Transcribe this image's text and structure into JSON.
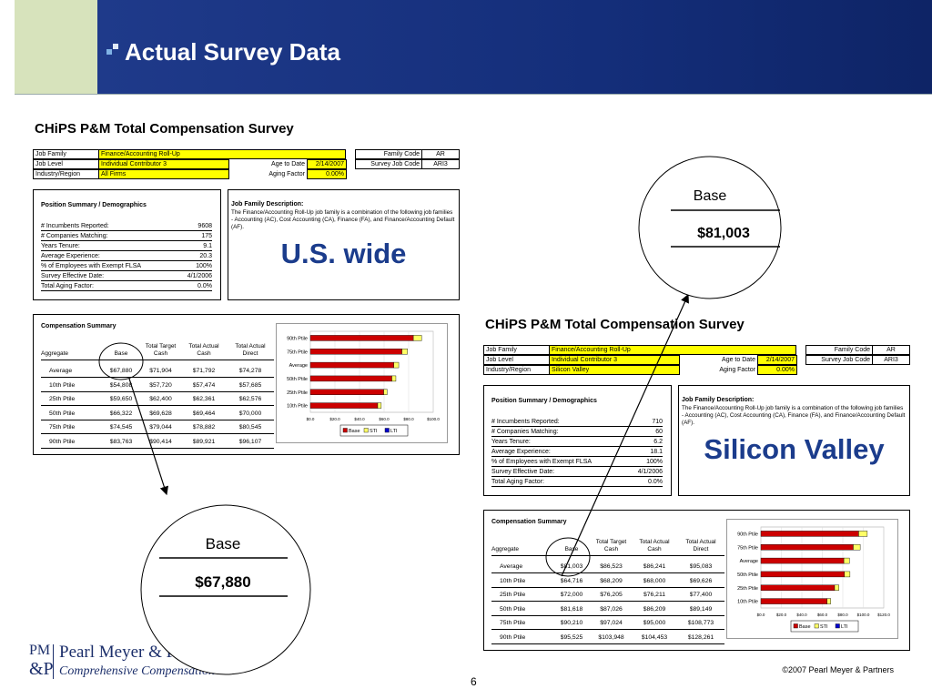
{
  "header": {
    "title": "Actual Survey Data"
  },
  "surveys": [
    {
      "title": "CHiPS P&M Total Compensation Survey",
      "fields": [
        {
          "label": "Job Family",
          "value": "Finance/Accounting Roll-Up"
        },
        {
          "label": "Job Level",
          "value": "Individual Contributor 3"
        },
        {
          "label": "Industry/Region",
          "value": "All Firms"
        }
      ],
      "dates": [
        {
          "label": "Age to Date",
          "value": "2/14/2007"
        },
        {
          "label": "Aging Factor",
          "value": "0.00%"
        }
      ],
      "codes": [
        {
          "label": "Family Code",
          "value": "AR"
        },
        {
          "label": "Survey Job Code",
          "value": "ARI3"
        }
      ],
      "position_summary": {
        "title": "Position Summary / Demographics",
        "rows": [
          [
            "# Incumbents Reported:",
            "9608"
          ],
          [
            "# Companies Matching:",
            "175"
          ],
          [
            "Years Tenure:",
            "9.1"
          ],
          [
            "Average Experience:",
            "20.3"
          ],
          [
            "% of Employees with Exempt FLSA",
            "100%"
          ],
          [
            "Survey Effective Date:",
            "4/1/2006"
          ],
          [
            "Total Aging Factor:",
            "0.0%"
          ]
        ]
      },
      "description": {
        "title": "Job Family Description:",
        "text": "The Finance/Accounting Roll-Up job family is a combination of the following job families - Accounting (AC), Cost Accounting (CA), Finance (FA), and Finance/Accounting Default (AF).",
        "label": "U.S. wide"
      },
      "comp_summary": {
        "title": "Compensation Summary",
        "columns": [
          "Aggregate",
          "Base",
          "Total Target Cash",
          "Total Actual Cash",
          "Total Actual Direct"
        ],
        "rows": [
          [
            "Average",
            "$67,880",
            "$71,904",
            "$71,792",
            "$74,278"
          ],
          [
            "10th Ptile",
            "$54,808",
            "$57,720",
            "$57,474",
            "$57,685"
          ],
          [
            "25th Ptile",
            "$59,650",
            "$62,400",
            "$62,361",
            "$62,576"
          ],
          [
            "50th Ptile",
            "$66,322",
            "$69,628",
            "$69,464",
            "$70,000"
          ],
          [
            "75th Ptile",
            "$74,545",
            "$79,044",
            "$78,882",
            "$80,545"
          ],
          [
            "90th Ptile",
            "$83,763",
            "$90,414",
            "$89,921",
            "$96,107"
          ]
        ],
        "chart": {
          "type": "bar",
          "categories": [
            "90th Ptile",
            "75th Ptile",
            "Average",
            "50th Ptile",
            "25th Ptile",
            "10th Ptile"
          ],
          "series": [
            {
              "name": "Base",
              "color": "#cc0000",
              "values": [
                83.8,
                74.5,
                67.9,
                66.3,
                59.7,
                54.8
              ]
            },
            {
              "name": "STI",
              "color": "#ffff66",
              "values": [
                6.7,
                4.5,
                4.0,
                3.3,
                2.8,
                2.9
              ]
            },
            {
              "name": "LTI",
              "color": "#0000cc",
              "values": [
                0,
                0,
                0,
                0,
                0,
                0
              ]
            }
          ],
          "xlim": [
            0,
            100
          ],
          "xticks": [
            {
              "value": 0,
              "label": "$0.0"
            },
            {
              "value": 20,
              "label": "$20.0"
            },
            {
              "value": 40,
              "label": "$40.0"
            },
            {
              "value": 60,
              "label": "$60.0"
            },
            {
              "value": 80,
              "label": "$80.0"
            },
            {
              "value": 100,
              "label": "$100.0"
            }
          ]
        }
      }
    },
    {
      "title": "CHiPS P&M Total Compensation Survey",
      "fields": [
        {
          "label": "Job Family",
          "value": "Finance/Accounting Roll-Up"
        },
        {
          "label": "Job Level",
          "value": "Individual Contributor 3"
        },
        {
          "label": "Industry/Region",
          "value": "Silicon Valley"
        }
      ],
      "dates": [
        {
          "label": "Age to Date",
          "value": "2/14/2007"
        },
        {
          "label": "Aging Factor",
          "value": "0.00%"
        }
      ],
      "codes": [
        {
          "label": "Family Code",
          "value": "AR"
        },
        {
          "label": "Survey Job Code",
          "value": "ARI3"
        }
      ],
      "position_summary": {
        "title": "Position Summary / Demographics",
        "rows": [
          [
            "# Incumbents Reported:",
            "710"
          ],
          [
            "# Companies Matching:",
            "60"
          ],
          [
            "Years Tenure:",
            "6.2"
          ],
          [
            "Average Experience:",
            "18.1"
          ],
          [
            "% of Employees with Exempt FLSA",
            "100%"
          ],
          [
            "Survey Effective Date:",
            "4/1/2006"
          ],
          [
            "Total Aging Factor:",
            "0.0%"
          ]
        ]
      },
      "description": {
        "title": "Job Family Description:",
        "text": "The Finance/Accounting Roll-Up job family is a combination of the following job families - Accounting (AC), Cost Accounting (CA), Finance (FA), and Finance/Accounting Default (AF).",
        "label": "Silicon Valley"
      },
      "comp_summary": {
        "title": "Compensation Summary",
        "columns": [
          "Aggregate",
          "Base",
          "Total Target Cash",
          "Total Actual Cash",
          "Total Actual Direct"
        ],
        "rows": [
          [
            "Average",
            "$81,003",
            "$86,523",
            "$86,241",
            "$95,083"
          ],
          [
            "10th Ptile",
            "$64,716",
            "$68,209",
            "$68,000",
            "$69,626"
          ],
          [
            "25th Ptile",
            "$72,000",
            "$76,205",
            "$76,211",
            "$77,400"
          ],
          [
            "50th Ptile",
            "$81,618",
            "$87,026",
            "$86,209",
            "$89,149"
          ],
          [
            "75th Ptile",
            "$90,210",
            "$97,024",
            "$95,000",
            "$108,773"
          ],
          [
            "90th Ptile",
            "$95,525",
            "$103,948",
            "$104,453",
            "$128,261"
          ]
        ],
        "chart": {
          "type": "bar",
          "categories": [
            "90th Ptile",
            "75th Ptile",
            "Average",
            "50th Ptile",
            "25th Ptile",
            "10th Ptile"
          ],
          "series": [
            {
              "name": "Base",
              "color": "#cc0000",
              "values": [
                95.5,
                90.2,
                81.0,
                81.6,
                72.0,
                64.7
              ]
            },
            {
              "name": "STI",
              "color": "#ffff66",
              "values": [
                8.4,
                6.8,
                5.5,
                5.4,
                4.2,
                3.5
              ]
            },
            {
              "name": "LTI",
              "color": "#0000cc",
              "values": [
                0,
                0,
                0,
                0,
                0,
                0
              ]
            }
          ],
          "xlim": [
            0,
            120
          ],
          "xticks": [
            {
              "value": 0,
              "label": "$0.0"
            },
            {
              "value": 20,
              "label": "$20.0"
            },
            {
              "value": 40,
              "label": "$40.0"
            },
            {
              "value": 60,
              "label": "$60.0"
            },
            {
              "value": 80,
              "label": "$80.0"
            },
            {
              "value": 100,
              "label": "$100.0"
            },
            {
              "value": 120,
              "label": "$120.0"
            }
          ]
        }
      }
    }
  ],
  "callouts": [
    {
      "title": "Base",
      "value": "$81,003"
    },
    {
      "title": "Base",
      "value": "$67,880"
    }
  ],
  "footer": {
    "logo_top": "PM",
    "logo_bottom": "&P",
    "company": "Pearl Meyer & Partners",
    "tagline": "Comprehensive Compensation℠",
    "copyright": "©2007 Pearl Meyer & Partners",
    "page": "6"
  }
}
